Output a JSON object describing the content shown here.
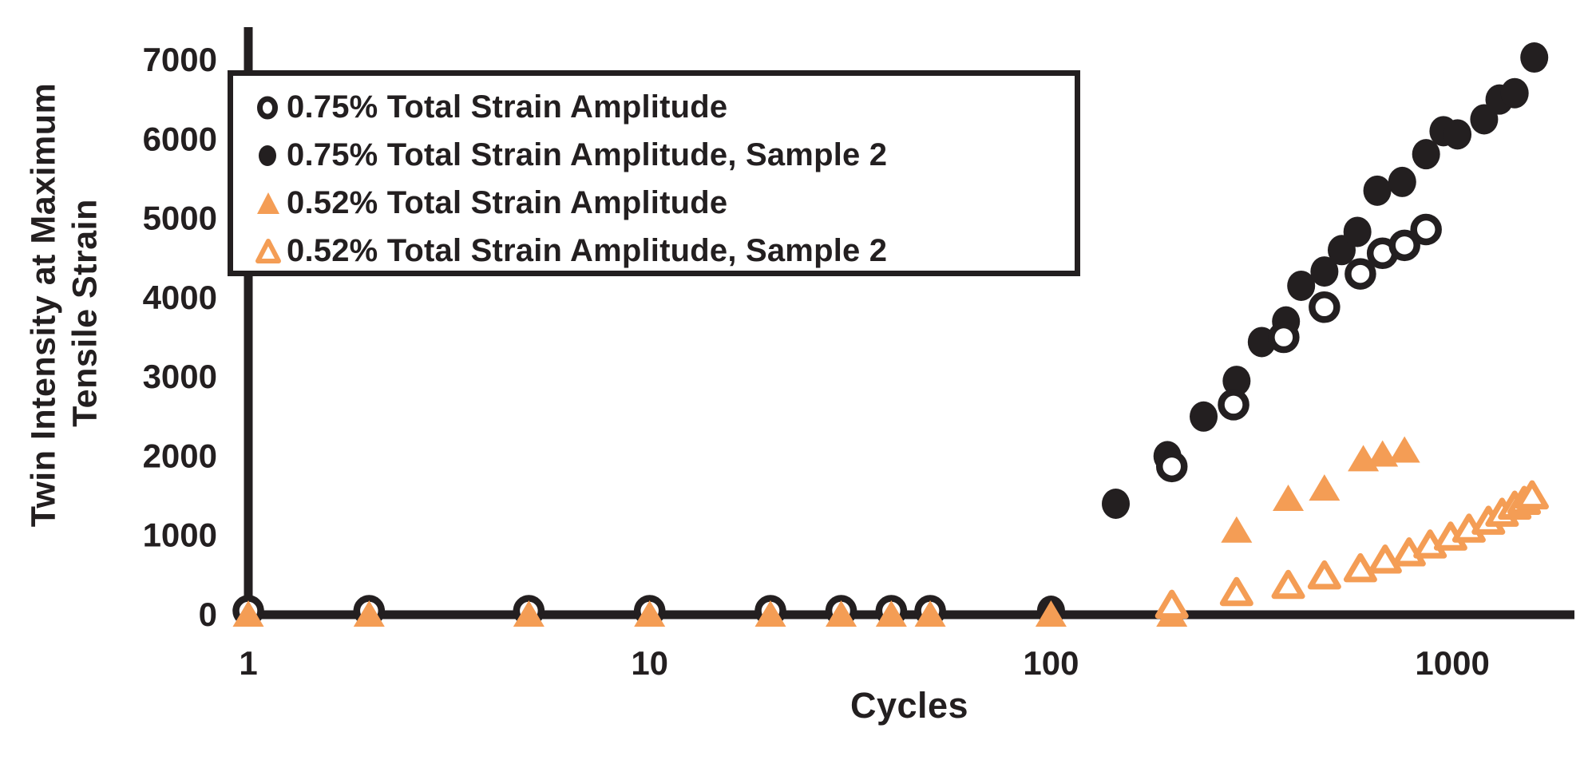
{
  "chart_data": {
    "type": "scatter",
    "title": "",
    "xlabel": "Cycles",
    "ylabel": "Twin Intensity at Maximum Tensile Strain",
    "ylabel_lines": [
      "Twin Intensity at  Maximum",
      "Tensile Strain"
    ],
    "x_scale": "log",
    "xlim": [
      1,
      2000
    ],
    "ylim": [
      0,
      7400
    ],
    "x_ticks": [
      1,
      10,
      100,
      1000
    ],
    "y_ticks": [
      0,
      1000,
      2000,
      3000,
      4000,
      5000,
      6000,
      7000
    ],
    "grid": false,
    "legend_position": "top-left",
    "colors": {
      "black": "#231f20",
      "orange": "#f49d55"
    },
    "series": [
      {
        "name": "0.75% Total Strain Amplitude",
        "marker": "circle-open",
        "color": "#231f20",
        "points": [
          [
            1,
            50
          ],
          [
            2,
            50
          ],
          [
            5,
            50
          ],
          [
            10,
            50
          ],
          [
            20,
            50
          ],
          [
            30,
            50
          ],
          [
            40,
            50
          ],
          [
            50,
            50
          ],
          [
            200,
            1870
          ],
          [
            285,
            2650
          ],
          [
            380,
            3500
          ],
          [
            480,
            3880
          ],
          [
            590,
            4300
          ],
          [
            670,
            4560
          ],
          [
            760,
            4660
          ],
          [
            860,
            4860
          ]
        ]
      },
      {
        "name": "0.75% Total Strain Amplitude, Sample 2",
        "marker": "circle-filled",
        "color": "#231f20",
        "points": [
          [
            1,
            50
          ],
          [
            2,
            50
          ],
          [
            5,
            50
          ],
          [
            10,
            50
          ],
          [
            20,
            50
          ],
          [
            30,
            50
          ],
          [
            40,
            50
          ],
          [
            50,
            50
          ],
          [
            100,
            50
          ],
          [
            145,
            1400
          ],
          [
            195,
            2000
          ],
          [
            240,
            2500
          ],
          [
            290,
            2950
          ],
          [
            335,
            3440
          ],
          [
            385,
            3700
          ],
          [
            420,
            4150
          ],
          [
            480,
            4330
          ],
          [
            530,
            4600
          ],
          [
            580,
            4830
          ],
          [
            650,
            5350
          ],
          [
            750,
            5460
          ],
          [
            860,
            5810
          ],
          [
            950,
            6100
          ],
          [
            1030,
            6060
          ],
          [
            1200,
            6250
          ],
          [
            1310,
            6500
          ],
          [
            1430,
            6580
          ],
          [
            1600,
            7030
          ]
        ]
      },
      {
        "name": "0.52% Total Strain Amplitude",
        "marker": "triangle-filled",
        "color": "#f49d55",
        "points": [
          [
            1,
            0
          ],
          [
            2,
            0
          ],
          [
            5,
            0
          ],
          [
            10,
            0
          ],
          [
            20,
            0
          ],
          [
            30,
            0
          ],
          [
            40,
            0
          ],
          [
            50,
            0
          ],
          [
            100,
            0
          ],
          [
            200,
            0
          ],
          [
            290,
            1060
          ],
          [
            390,
            1460
          ],
          [
            480,
            1590
          ],
          [
            600,
            1960
          ],
          [
            670,
            2020
          ],
          [
            760,
            2070
          ]
        ]
      },
      {
        "name": "0.52% Total Strain Amplitude, Sample 2",
        "marker": "triangle-open",
        "color": "#f49d55",
        "points": [
          [
            200,
            120
          ],
          [
            290,
            280
          ],
          [
            390,
            370
          ],
          [
            480,
            490
          ],
          [
            590,
            580
          ],
          [
            680,
            690
          ],
          [
            780,
            780
          ],
          [
            880,
            880
          ],
          [
            990,
            980
          ],
          [
            1100,
            1080
          ],
          [
            1230,
            1180
          ],
          [
            1330,
            1280
          ],
          [
            1430,
            1370
          ],
          [
            1510,
            1430
          ],
          [
            1580,
            1500
          ]
        ]
      }
    ]
  }
}
